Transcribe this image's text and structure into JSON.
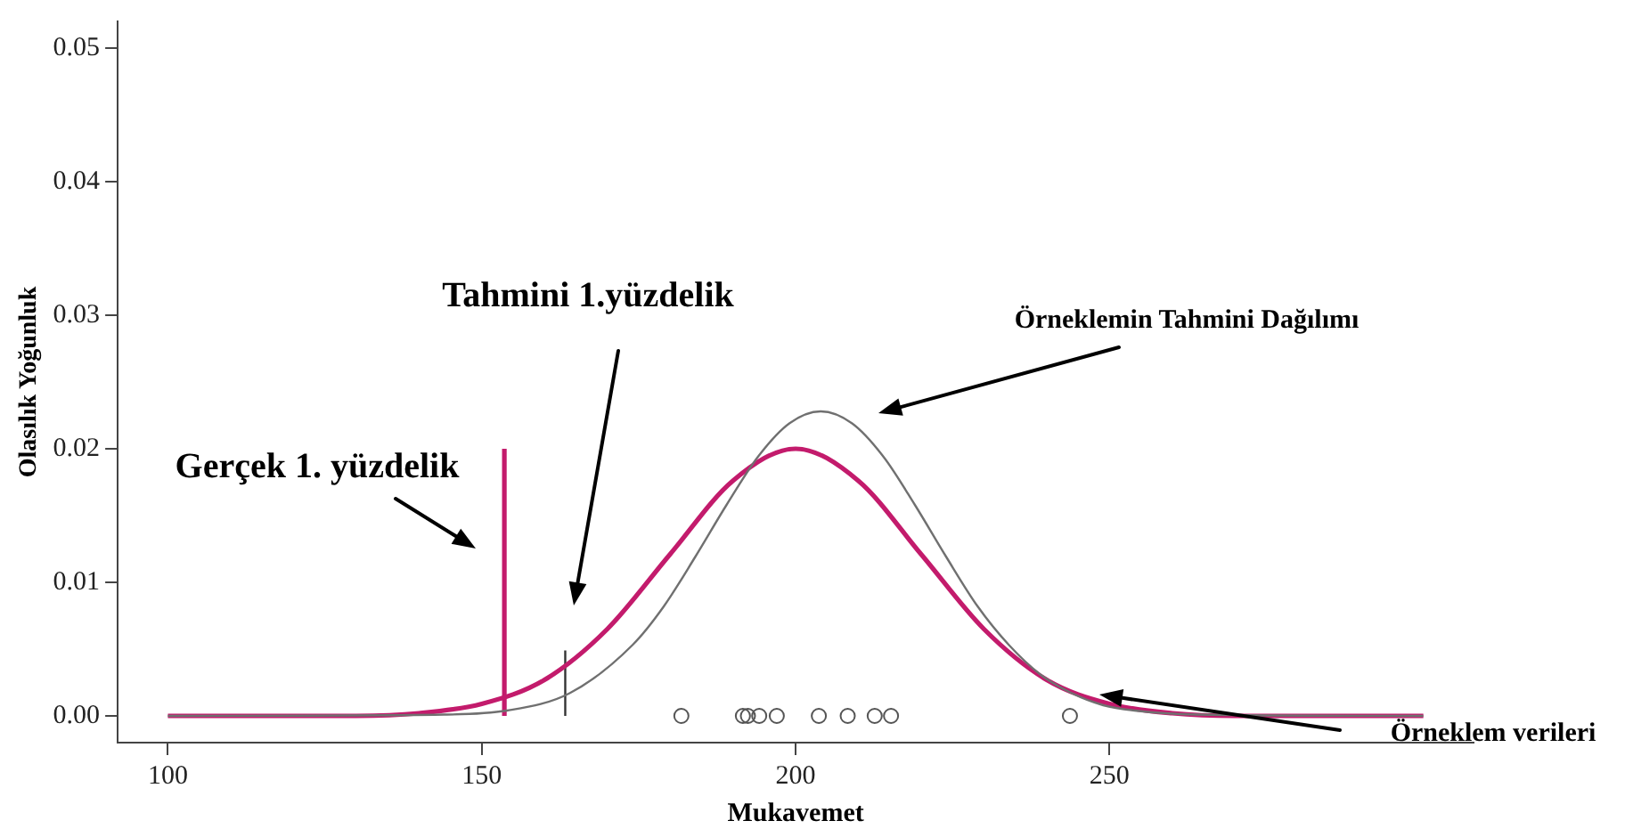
{
  "chart_data": {
    "type": "line",
    "xlabel": "Mukavemet",
    "ylabel": "Olasılık Yoğunluk",
    "xlim": [
      92,
      308
    ],
    "xticks": [
      100,
      150,
      200,
      250
    ],
    "ylim": [
      -0.002,
      0.052
    ],
    "yticks": [
      {
        "value": 0,
        "label": "0.00"
      },
      {
        "value": 0.01,
        "label": "0.01"
      },
      {
        "value": 0.02,
        "label": "0.02"
      },
      {
        "value": 0.03,
        "label": "0.03"
      },
      {
        "value": 0.04,
        "label": "0.04"
      },
      {
        "value": 0.05,
        "label": "0.05"
      }
    ],
    "grid": false,
    "legend": false,
    "marker": "none",
    "line_style": "solid",
    "series": [
      {
        "type": "line",
        "color": "#707070",
        "x": [
          100,
          144,
          154,
          164,
          174,
          179,
          184,
          189,
          194,
          199,
          204,
          209,
          214,
          219,
          224,
          229,
          234,
          239,
          244,
          249,
          254,
          264,
          300
        ],
        "values": [
          0,
          0.0001,
          0.0004,
          0.0017,
          0.0053,
          0.0082,
          0.0119,
          0.0158,
          0.0194,
          0.0219,
          0.0228,
          0.0219,
          0.0194,
          0.0158,
          0.0119,
          0.0082,
          0.0053,
          0.0031,
          0.0017,
          0.0008,
          0.0004,
          0.0001,
          0
        ]
      },
      {
        "type": "line",
        "color": "#c31b6c",
        "x": [
          100,
          130,
          140,
          150,
          160,
          170,
          180,
          190,
          200,
          210,
          220,
          230,
          240,
          250,
          260,
          270,
          300
        ],
        "values": [
          0,
          0,
          0.0002,
          0.0009,
          0.0027,
          0.0065,
          0.0121,
          0.0176,
          0.02,
          0.0176,
          0.0121,
          0.0065,
          0.0027,
          0.0009,
          0.0002,
          0,
          0
        ]
      },
      {
        "type": "line",
        "color": "#c31b6c",
        "x": [
          153.6,
          153.6
        ],
        "values": [
          0,
          0.02
        ]
      },
      {
        "type": "line",
        "color": "#333333",
        "x": [
          163.3,
          163.3
        ],
        "values": [
          0,
          0.0049
        ]
      },
      {
        "type": "scatter",
        "marker": "circle",
        "color": "#555555",
        "x": [
          181.8,
          191.6,
          192.4,
          194.2,
          197,
          203.7,
          208.3,
          212.6,
          215.2,
          243.7
        ],
        "values": [
          0,
          0,
          0,
          0,
          0,
          0,
          0,
          0,
          0,
          0
        ]
      }
    ],
    "annotations": [
      "Tahmini 1.yüzdelik",
      "Gerçek 1. yüzdelik",
      "Örneklemin Tahmini Dağılımı",
      "Örneklem verileri"
    ]
  }
}
